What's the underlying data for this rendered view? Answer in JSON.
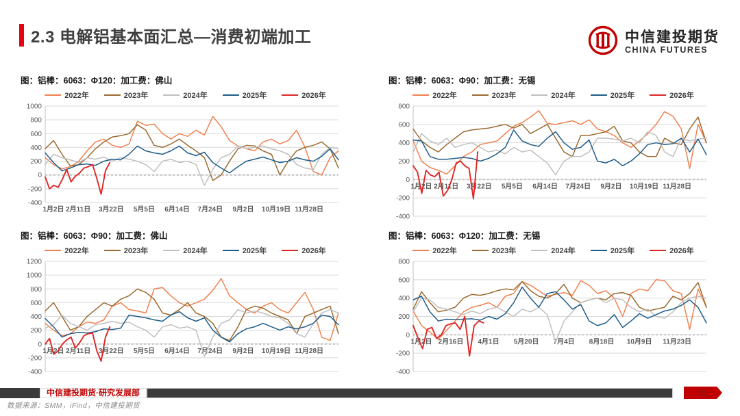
{
  "page": {
    "title": "2.3 电解铝基本面汇总—消费初端加工"
  },
  "logo": {
    "name_cn": "中信建投期货",
    "name_en": "CHINA FUTURES",
    "emblem": "citic-futures-red-seal",
    "color": "#C00000"
  },
  "footer": {
    "department": "中信建投期货·研究发展部",
    "data_source": "数据来源：SMM，iFind，中信建投期货",
    "page_number": "21"
  },
  "colors": {
    "accent_red": "#E60012",
    "brand_red": "#C00000",
    "grid_line": "#D9D9D9",
    "zero_line": "#C8C8C8",
    "axis_text": "#595959"
  },
  "chart_data": [
    {
      "type": "line",
      "title": "图：铝棒：6063：Φ120：加工费：佛山",
      "ylim": [
        -400,
        1000
      ],
      "ytick_step": 200,
      "grid": true,
      "legend_position": "top",
      "x_label_pos": "bottom",
      "x_labels": [
        "1月2日",
        "2月11日",
        "3月22日",
        "5月5日",
        "6月14日",
        "7月24日",
        "9月2日",
        "10月19日",
        "11月28日"
      ],
      "series": [
        {
          "name": "2022年",
          "color": "#F0814E",
          "values": [
            250,
            150,
            90,
            120,
            200,
            350,
            480,
            520,
            430,
            400,
            450,
            780,
            720,
            740,
            600,
            520,
            600,
            560,
            650,
            580,
            850,
            700,
            500,
            420,
            380,
            350,
            480,
            520,
            450,
            500,
            650,
            400,
            50,
            0,
            250,
            350
          ]
        },
        {
          "name": "2023年",
          "color": "#9A6A2F",
          "values": [
            380,
            500,
            300,
            130,
            150,
            250,
            380,
            480,
            550,
            570,
            600,
            730,
            650,
            430,
            400,
            450,
            520,
            430,
            350,
            250,
            -80,
            0,
            200,
            380,
            430,
            420,
            350,
            300,
            0,
            200,
            350,
            400,
            430,
            480,
            380,
            100
          ]
        },
        {
          "name": "2024年",
          "color": "#BFBFBF",
          "values": [
            150,
            300,
            250,
            220,
            180,
            250,
            230,
            260,
            200,
            250,
            230,
            200,
            150,
            50,
            200,
            230,
            180,
            200,
            150,
            -150,
            80,
            250,
            300,
            420,
            380,
            400,
            420,
            380,
            350,
            300,
            150,
            100,
            80,
            300,
            400,
            380
          ]
        },
        {
          "name": "2025年",
          "color": "#1F5C8A",
          "values": [
            320,
            180,
            60,
            100,
            150,
            160,
            140,
            200,
            230,
            220,
            300,
            420,
            350,
            320,
            300,
            350,
            420,
            320,
            280,
            330,
            180,
            100,
            30,
            120,
            200,
            230,
            260,
            220,
            180,
            200,
            250,
            220,
            200,
            270,
            380,
            220
          ]
        },
        {
          "name": "2026年",
          "color": "#E02525",
          "span": [
            0,
            0.22
          ],
          "values": [
            -30,
            -200,
            -150,
            -180,
            -60,
            80,
            -100,
            -20,
            30,
            100,
            120,
            150,
            -50,
            -280,
            60,
            180
          ]
        }
      ]
    },
    {
      "type": "line",
      "title": "图：铝棒：6063：Φ90：加工费：无锡",
      "ylim": [
        -400,
        800
      ],
      "ytick_step": 200,
      "grid": true,
      "legend_position": "top",
      "x_label_pos": "zero",
      "x_labels": [
        "1月2日",
        "2月11日",
        "3月22日",
        "5月5日",
        "6月14日",
        "7月24日",
        "9月2日",
        "10月19日",
        "11月28日"
      ],
      "series": [
        {
          "name": "2022年",
          "color": "#F0814E",
          "values": [
            420,
            200,
            130,
            100,
            60,
            150,
            250,
            300,
            380,
            400,
            420,
            500,
            580,
            620,
            680,
            750,
            610,
            600,
            620,
            640,
            600,
            650,
            550,
            520,
            480,
            400,
            350,
            420,
            500,
            600,
            740,
            690,
            550,
            120,
            600,
            400
          ]
        },
        {
          "name": "2023年",
          "color": "#9A6A2F",
          "values": [
            550,
            420,
            350,
            300,
            380,
            450,
            520,
            540,
            550,
            560,
            580,
            600,
            560,
            600,
            500,
            550,
            600,
            450,
            300,
            250,
            480,
            480,
            500,
            520,
            580,
            420,
            400,
            300,
            250,
            250,
            450,
            400,
            380,
            550,
            680,
            400
          ]
        },
        {
          "name": "2024年",
          "color": "#BFBFBF",
          "values": [
            300,
            500,
            420,
            380,
            450,
            350,
            380,
            400,
            350,
            300,
            320,
            280,
            350,
            300,
            320,
            250,
            180,
            50,
            200,
            250,
            250,
            300,
            450,
            450,
            440,
            420,
            450,
            400,
            520,
            480,
            300,
            250,
            450,
            420,
            440,
            450
          ]
        },
        {
          "name": "2025年",
          "color": "#1F5C8A",
          "values": [
            430,
            420,
            250,
            220,
            220,
            230,
            240,
            230,
            200,
            230,
            280,
            350,
            540,
            420,
            380,
            360,
            450,
            520,
            400,
            330,
            350,
            430,
            200,
            180,
            220,
            150,
            200,
            280,
            380,
            400,
            380,
            390,
            450,
            300,
            440,
            270
          ]
        },
        {
          "name": "2026年",
          "color": "#E02525",
          "span": [
            0,
            0.22
          ],
          "values": [
            150,
            80,
            -150,
            100,
            50,
            30,
            80,
            -180,
            -120,
            0,
            180,
            200,
            150,
            120,
            -210,
            300
          ]
        }
      ]
    },
    {
      "type": "line",
      "title": "图：铝棒：6063：Φ90：加工费：佛山",
      "ylim": [
        -400,
        1200
      ],
      "ytick_step": 200,
      "grid": true,
      "legend_position": "top",
      "x_label_pos": "zero",
      "x_labels": [
        "1月2日",
        "2月11日",
        "3月22日",
        "5月5日",
        "6月14日",
        "7月24日",
        "9月2日",
        "10月19日",
        "11月28日"
      ],
      "series": [
        {
          "name": "2022年",
          "color": "#F0814E",
          "values": [
            300,
            200,
            120,
            150,
            250,
            320,
            300,
            350,
            550,
            600,
            500,
            480,
            450,
            800,
            820,
            700,
            600,
            550,
            600,
            650,
            780,
            950,
            700,
            600,
            500,
            450,
            550,
            600,
            500,
            450,
            600,
            750,
            500,
            100,
            50,
            450
          ]
        },
        {
          "name": "2023年",
          "color": "#9A6A2F",
          "values": [
            480,
            600,
            400,
            200,
            250,
            400,
            500,
            600,
            550,
            650,
            700,
            800,
            750,
            650,
            450,
            420,
            500,
            600,
            450,
            400,
            300,
            100,
            50,
            250,
            500,
            550,
            520,
            450,
            400,
            350,
            150,
            400,
            450,
            500,
            550,
            150
          ]
        },
        {
          "name": "2024年",
          "color": "#BFBFBF",
          "values": [
            230,
            280,
            420,
            300,
            250,
            200,
            280,
            300,
            330,
            300,
            320,
            250,
            200,
            100,
            250,
            280,
            230,
            250,
            200,
            -180,
            100,
            300,
            350,
            500,
            450,
            480,
            450,
            400,
            380,
            300,
            150,
            100,
            300,
            450,
            500,
            450
          ]
        },
        {
          "name": "2025年",
          "color": "#1F5C8A",
          "values": [
            370,
            250,
            100,
            150,
            170,
            160,
            180,
            220,
            210,
            230,
            420,
            400,
            380,
            350,
            330,
            420,
            470,
            380,
            330,
            380,
            200,
            100,
            30,
            150,
            220,
            250,
            300,
            250,
            200,
            250,
            220,
            250,
            300,
            420,
            400,
            280
          ]
        },
        {
          "name": "2026年",
          "color": "#E02525",
          "span": [
            0,
            0.22
          ],
          "values": [
            0,
            80,
            -150,
            -100,
            0,
            60,
            100,
            -60,
            20,
            120,
            150,
            160,
            -100,
            -250,
            100,
            250
          ]
        }
      ]
    },
    {
      "type": "line",
      "title": "图：铝棒：6063：Φ120：加工费：无锡",
      "ylim": [
        -400,
        800
      ],
      "ytick_step": 200,
      "grid": true,
      "legend_position": "top",
      "x_label_pos": "zero",
      "x_labels": [
        "1月2日",
        "2月16日",
        "4月1日",
        "5月20日",
        "7月4日",
        "8月18日",
        "10月9日",
        "11月23日"
      ],
      "series": [
        {
          "name": "2022年",
          "color": "#F0814E",
          "values": [
            260,
            100,
            30,
            -50,
            50,
            150,
            250,
            300,
            320,
            350,
            300,
            420,
            450,
            580,
            540,
            480,
            420,
            440,
            460,
            430,
            590,
            540,
            450,
            480,
            400,
            200,
            450,
            500,
            480,
            600,
            590,
            480,
            450,
            60,
            500,
            300
          ]
        },
        {
          "name": "2023年",
          "color": "#9A6A2F",
          "values": [
            280,
            470,
            350,
            250,
            270,
            300,
            400,
            440,
            430,
            450,
            480,
            500,
            490,
            580,
            480,
            420,
            400,
            450,
            550,
            400,
            350,
            380,
            400,
            380,
            450,
            460,
            430,
            300,
            260,
            280,
            300,
            420,
            380,
            450,
            570,
            300
          ]
        },
        {
          "name": "2024年",
          "color": "#BFBFBF",
          "values": [
            250,
            400,
            380,
            300,
            280,
            250,
            220,
            260,
            230,
            280,
            300,
            250,
            200,
            280,
            250,
            300,
            220,
            -80,
            150,
            250,
            350,
            380,
            400,
            350,
            400,
            380,
            300,
            250,
            280,
            200,
            180,
            250,
            350,
            400,
            420,
            400
          ]
        },
        {
          "name": "2025年",
          "color": "#1F5C8A",
          "values": [
            380,
            420,
            250,
            150,
            170,
            165,
            170,
            175,
            160,
            200,
            170,
            230,
            350,
            520,
            400,
            300,
            450,
            470,
            380,
            280,
            330,
            150,
            100,
            130,
            220,
            80,
            150,
            230,
            180,
            220,
            260,
            280,
            320,
            380,
            300,
            130
          ]
        },
        {
          "name": "2026年",
          "color": "#E02525",
          "span": [
            0,
            0.24
          ],
          "values": [
            100,
            -30,
            -150,
            60,
            80,
            -40,
            0,
            100,
            120,
            130,
            60,
            200,
            -230,
            100,
            150,
            130
          ]
        }
      ]
    }
  ]
}
